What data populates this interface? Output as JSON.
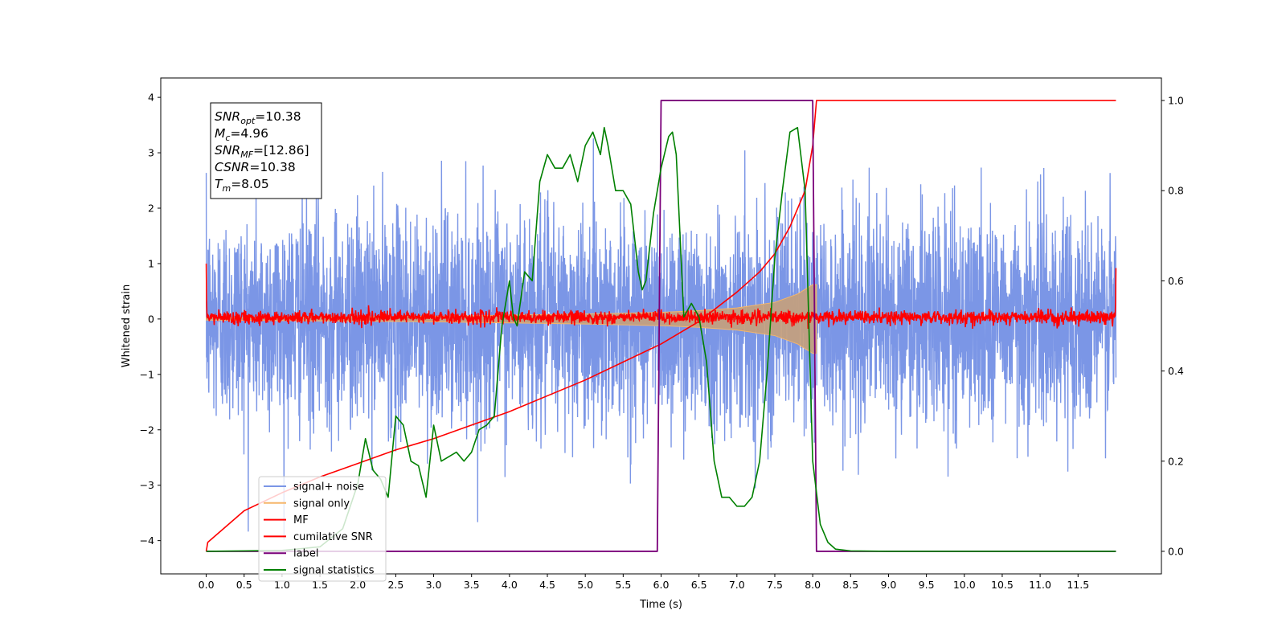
{
  "chart_data": {
    "type": "line",
    "title": "",
    "xlabel": "Time (s)",
    "ylabel": "Whitened strain",
    "y2label": "",
    "xlim": [
      -0.6,
      12.6
    ],
    "ylim": [
      -4.6,
      4.35
    ],
    "y2lim": [
      -0.05,
      1.05
    ],
    "x_ticks": [
      0.0,
      0.5,
      1.0,
      1.5,
      2.0,
      2.5,
      3.0,
      3.5,
      4.0,
      4.5,
      5.0,
      5.5,
      6.0,
      6.5,
      7.0,
      7.5,
      8.0,
      8.5,
      9.0,
      9.5,
      10.0,
      10.5,
      11.0,
      11.5
    ],
    "x_tick_labels": [
      "0.0",
      "0.5",
      "1.0",
      "1.5",
      "2.0",
      "2.5",
      "3.0",
      "3.5",
      "4.0",
      "4.5",
      "5.0",
      "5.5",
      "6.0",
      "6.5",
      "7.0",
      "7.5",
      "8.0",
      "8.5",
      "9.0",
      "9.5",
      "10.0",
      "10.5",
      "11.0",
      "11.5"
    ],
    "y_ticks": [
      -4,
      -3,
      -2,
      -1,
      0,
      1,
      2,
      3,
      4
    ],
    "y_tick_labels": [
      "−4",
      "−3",
      "−2",
      "−1",
      "0",
      "1",
      "2",
      "3",
      "4"
    ],
    "y2_ticks": [
      0.0,
      0.2,
      0.4,
      0.6,
      0.8,
      1.0
    ],
    "y2_tick_labels": [
      "0.0",
      "0.2",
      "0.4",
      "0.6",
      "0.8",
      "1.0"
    ],
    "grid": false,
    "legend_position": "lower-left",
    "annotation": {
      "lines": [
        {
          "sym": "SNR",
          "sub": "opt",
          "val": "=10.38"
        },
        {
          "sym": "M",
          "sub": "c",
          "val": "=4.96"
        },
        {
          "sym": "SNR",
          "sub": "MF",
          "val": "=[12.86]"
        },
        {
          "sym": "CSNR",
          "sub": "",
          "val": "=10.38"
        },
        {
          "sym": "T",
          "sub": "m",
          "val": "=8.05"
        }
      ]
    },
    "series": [
      {
        "name": "signal+ noise",
        "axis": "left",
        "color": "#7b96e6",
        "kind": "noise",
        "x_range": [
          0.0,
          12.0
        ],
        "amplitude_std": 1.0,
        "peak_range": [
          -4.0,
          4.0
        ]
      },
      {
        "name": "signal only",
        "axis": "left",
        "color": "#f5b66a",
        "kind": "chirp-envelope",
        "x": [
          0.0,
          3.0,
          4.0,
          5.0,
          6.0,
          6.5,
          7.0,
          7.5,
          7.8,
          8.0,
          8.05
        ],
        "envelope": [
          0.02,
          0.05,
          0.07,
          0.09,
          0.12,
          0.15,
          0.2,
          0.3,
          0.45,
          0.62,
          0.62
        ]
      },
      {
        "name": "MF",
        "axis": "left",
        "color": "#ff0000",
        "kind": "mf",
        "x_range": [
          0.0,
          12.0
        ],
        "amplitude_std": 0.06,
        "edge_values": [
          1.0,
          0.92
        ]
      },
      {
        "name": "cumilative SNR",
        "axis": "right",
        "color": "#ff0000",
        "x": [
          0.0,
          0.02,
          0.5,
          1.0,
          1.5,
          2.0,
          2.5,
          3.0,
          3.5,
          4.0,
          4.5,
          5.0,
          5.5,
          6.0,
          6.5,
          7.0,
          7.3,
          7.5,
          7.7,
          7.9,
          8.0,
          8.05,
          12.0
        ],
        "y": [
          0.0,
          0.02,
          0.09,
          0.13,
          0.165,
          0.195,
          0.225,
          0.25,
          0.28,
          0.31,
          0.345,
          0.38,
          0.42,
          0.46,
          0.51,
          0.575,
          0.62,
          0.66,
          0.72,
          0.8,
          0.9,
          1.0,
          1.0
        ]
      },
      {
        "name": "label",
        "axis": "right",
        "color": "#7a007a",
        "x": [
          0.0,
          5.95,
          6.0,
          8.0,
          8.05,
          12.0
        ],
        "y": [
          0.0,
          0.0,
          1.0,
          1.0,
          0.0,
          0.0
        ]
      },
      {
        "name": "signal statistics",
        "axis": "right",
        "color": "#008000",
        "x": [
          0.0,
          0.5,
          1.0,
          1.5,
          1.8,
          2.0,
          2.1,
          2.2,
          2.3,
          2.4,
          2.5,
          2.6,
          2.7,
          2.8,
          2.9,
          3.0,
          3.1,
          3.2,
          3.3,
          3.4,
          3.5,
          3.6,
          3.7,
          3.8,
          3.9,
          4.0,
          4.05,
          4.1,
          4.2,
          4.3,
          4.4,
          4.5,
          4.6,
          4.7,
          4.8,
          4.9,
          5.0,
          5.1,
          5.2,
          5.25,
          5.3,
          5.4,
          5.5,
          5.6,
          5.7,
          5.75,
          5.8,
          5.9,
          6.0,
          6.1,
          6.15,
          6.2,
          6.3,
          6.4,
          6.5,
          6.6,
          6.7,
          6.8,
          6.9,
          7.0,
          7.1,
          7.2,
          7.3,
          7.4,
          7.5,
          7.6,
          7.7,
          7.8,
          7.9,
          8.0,
          8.1,
          8.2,
          8.3,
          8.5,
          9.0,
          10.0,
          11.0,
          12.0
        ],
        "y": [
          0.0,
          0.001,
          0.002,
          0.01,
          0.05,
          0.15,
          0.25,
          0.18,
          0.16,
          0.12,
          0.3,
          0.28,
          0.2,
          0.19,
          0.12,
          0.28,
          0.2,
          0.21,
          0.22,
          0.2,
          0.22,
          0.27,
          0.28,
          0.3,
          0.5,
          0.6,
          0.52,
          0.5,
          0.62,
          0.6,
          0.82,
          0.88,
          0.85,
          0.85,
          0.88,
          0.82,
          0.9,
          0.93,
          0.88,
          0.94,
          0.9,
          0.8,
          0.8,
          0.77,
          0.62,
          0.58,
          0.6,
          0.75,
          0.85,
          0.92,
          0.93,
          0.88,
          0.52,
          0.55,
          0.52,
          0.42,
          0.2,
          0.12,
          0.12,
          0.1,
          0.1,
          0.12,
          0.2,
          0.4,
          0.65,
          0.8,
          0.93,
          0.94,
          0.8,
          0.2,
          0.06,
          0.02,
          0.005,
          0.001,
          0.0,
          0.0,
          0.0,
          0.0
        ]
      }
    ]
  }
}
